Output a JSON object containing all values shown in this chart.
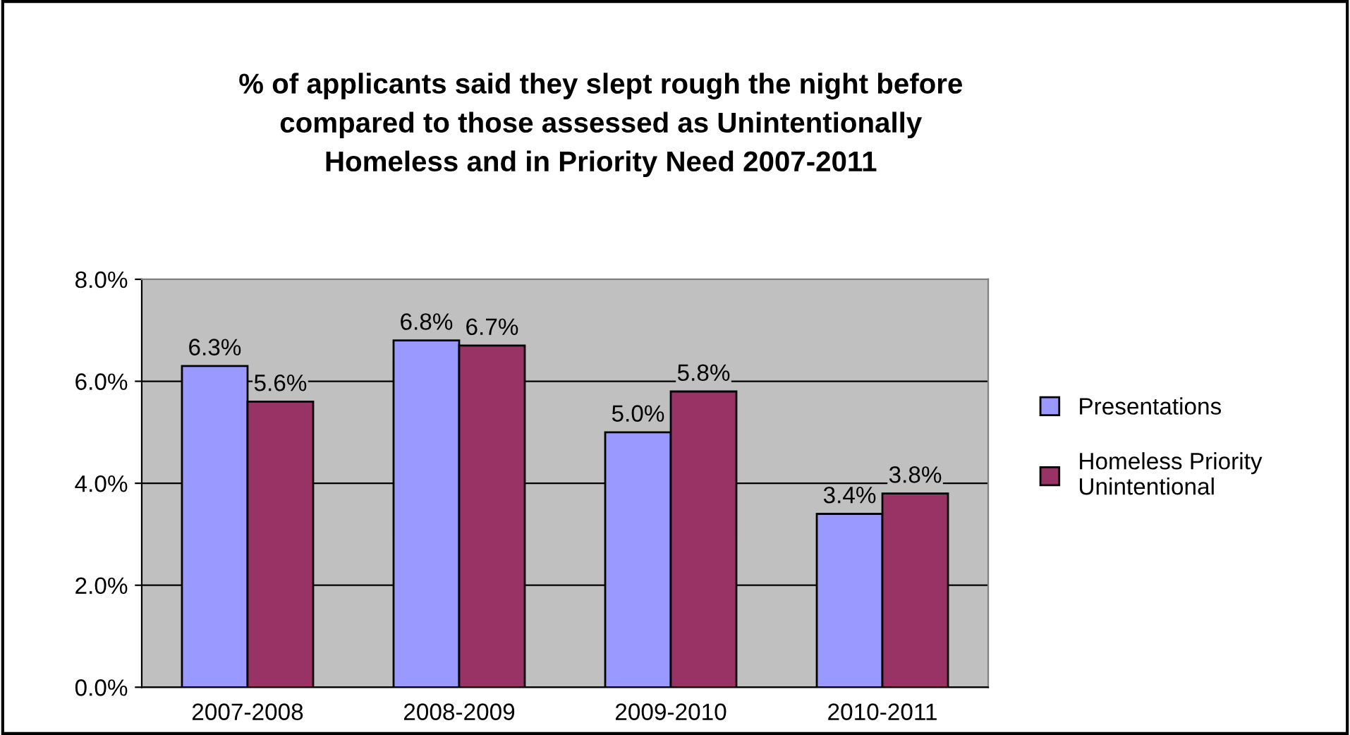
{
  "chart_data": {
    "type": "bar",
    "title": "% of applicants said they slept rough the night before\ncompared to those assessed as Unintentionally\nHomeless and in Priority Need 2007-2011",
    "categories": [
      "2007-2008",
      "2008-2009",
      "2009-2010",
      "2010-2011"
    ],
    "series": [
      {
        "name": "Presentations",
        "color": "#9999ff",
        "values": [
          6.3,
          6.8,
          5.0,
          3.4
        ],
        "value_labels": [
          "6.3%",
          "6.8%",
          "5.0%",
          "3.4%"
        ]
      },
      {
        "name": "Homeless Priority\nUnintentional",
        "color": "#993366",
        "values": [
          5.6,
          6.7,
          5.8,
          3.8
        ],
        "value_labels": [
          "5.6%",
          "6.7%",
          "5.8%",
          "3.8%"
        ]
      }
    ],
    "ylim": [
      0,
      8
    ],
    "yticks": [
      {
        "value": 0,
        "label": "0.0%"
      },
      {
        "value": 2,
        "label": "2.0%"
      },
      {
        "value": 4,
        "label": "4.0%"
      },
      {
        "value": 6,
        "label": "6.0%"
      },
      {
        "value": 8,
        "label": "8.0%"
      }
    ],
    "grid": "y",
    "legend": "right"
  }
}
